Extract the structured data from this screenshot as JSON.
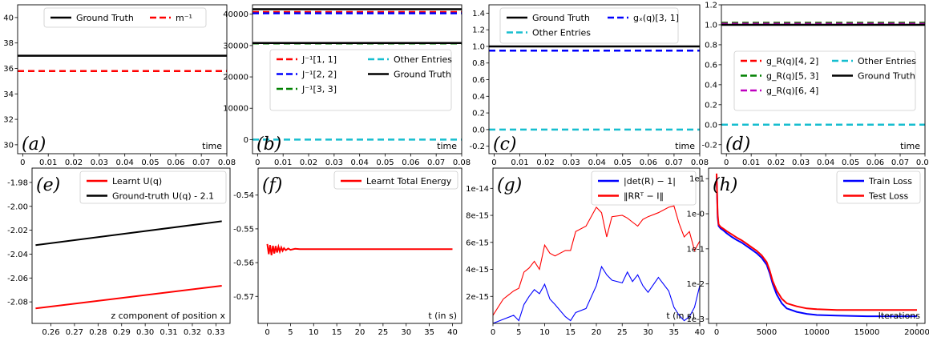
{
  "chart_data": [
    {
      "type": "line",
      "panel_label": "(a)",
      "xlabel": "time",
      "ylabel": "",
      "xlim": [
        -0.002,
        0.08
      ],
      "ylim": [
        29.3,
        41.0
      ],
      "xticks": [
        0,
        0.01,
        0.02,
        0.03,
        0.04,
        0.05,
        0.06,
        0.07,
        0.08
      ],
      "xtick_labels": [
        "0",
        "0.01",
        "0.02",
        "0.03",
        "0.04",
        "0.05",
        "0.06",
        "0.07",
        "0.08"
      ],
      "yticks": [
        30,
        32,
        34,
        36,
        38,
        40
      ],
      "ytick_labels": [
        "30",
        "32",
        "34",
        "36",
        "38",
        "40"
      ],
      "legend": {
        "placement": "top",
        "columns": 2
      },
      "series": [
        {
          "name": "Ground Truth",
          "color": "#000000",
          "dash": "solid",
          "x": [
            -0.002,
            0.08
          ],
          "y": [
            37.0,
            37.0
          ]
        },
        {
          "name": "m⁻¹",
          "color": "#ff0000",
          "dash": "dashed",
          "x": [
            -0.002,
            0.08
          ],
          "y": [
            35.8,
            35.8
          ]
        }
      ]
    },
    {
      "type": "line",
      "panel_label": "(b)",
      "xlabel": "time",
      "ylabel": "",
      "xlim": [
        -0.002,
        0.08
      ],
      "ylim": [
        -4500,
        43000
      ],
      "xticks": [
        0,
        0.01,
        0.02,
        0.03,
        0.04,
        0.05,
        0.06,
        0.07,
        0.08
      ],
      "xtick_labels": [
        "0",
        "0.01",
        "0.02",
        "0.03",
        "0.04",
        "0.05",
        "0.06",
        "0.07",
        "0.08"
      ],
      "yticks": [
        0,
        10000,
        20000,
        30000,
        40000
      ],
      "ytick_labels": [
        "0",
        "10000",
        "20000",
        "30000",
        "40000"
      ],
      "legend": {
        "placement": "center",
        "columns": 2
      },
      "series": [
        {
          "name": "J⁻¹[1, 1]",
          "color": "#ff0000",
          "dash": "dashed",
          "x": [
            -0.002,
            0.08
          ],
          "y": [
            40700,
            40700
          ]
        },
        {
          "name": "J⁻¹[2, 2]",
          "color": "#0000ff",
          "dash": "dashed",
          "x": [
            -0.002,
            0.08
          ],
          "y": [
            40300,
            40300
          ]
        },
        {
          "name": "J⁻¹[3, 3]",
          "color": "#008000",
          "dash": "dashed",
          "x": [
            -0.002,
            0.08
          ],
          "y": [
            30700,
            30700
          ]
        },
        {
          "name": "Other Entries",
          "color": "#17becf",
          "dash": "dashed",
          "x": [
            -0.002,
            0.08
          ],
          "y": [
            0,
            0
          ]
        },
        {
          "name": "Ground Truth",
          "color": "#000000",
          "dash": "solid",
          "x": [
            -0.002,
            0.08
          ],
          "y": [
            41600,
            41600
          ]
        },
        {
          "name": "",
          "color": "#000000",
          "dash": "solid",
          "x": [
            -0.002,
            0.08
          ],
          "y": [
            30800,
            30800
          ]
        }
      ]
    },
    {
      "type": "line",
      "panel_label": "(c)",
      "xlabel": "time",
      "ylabel": "",
      "xlim": [
        -0.002,
        0.08
      ],
      "ylim": [
        -0.29,
        1.5
      ],
      "xticks": [
        0,
        0.01,
        0.02,
        0.03,
        0.04,
        0.05,
        0.06,
        0.07,
        0.08
      ],
      "xtick_labels": [
        "0",
        "0.01",
        "0.02",
        "0.03",
        "0.04",
        "0.05",
        "0.06",
        "0.07",
        "0.08"
      ],
      "yticks": [
        -0.2,
        0,
        0.2,
        0.4,
        0.6,
        0.8,
        1.0,
        1.2,
        1.4
      ],
      "ytick_labels": [
        "-0.2",
        "0.0",
        "0.2",
        "0.4",
        "0.6",
        "0.8",
        "1.0",
        "1.2",
        "1.4"
      ],
      "legend": {
        "placement": "top",
        "columns": 2
      },
      "series": [
        {
          "name": "Ground Truth",
          "color": "#000000",
          "dash": "solid",
          "x": [
            -0.002,
            0.08
          ],
          "y": [
            1.0,
            1.0
          ]
        },
        {
          "name": "Other Entries",
          "color": "#17becf",
          "dash": "dashed",
          "x": [
            -0.002,
            0.08
          ],
          "y": [
            0.0,
            0.0
          ]
        },
        {
          "name": "gₓ(q)[3, 1]",
          "color": "#0000ff",
          "dash": "dashed",
          "x": [
            -0.002,
            0.08
          ],
          "y": [
            0.95,
            0.95
          ]
        }
      ]
    },
    {
      "type": "line",
      "panel_label": "(d)",
      "xlabel": "time",
      "ylabel": "",
      "xlim": [
        -0.002,
        0.08
      ],
      "ylim": [
        -0.29,
        1.2
      ],
      "xticks": [
        0,
        0.01,
        0.02,
        0.03,
        0.04,
        0.05,
        0.06,
        0.07,
        0.08
      ],
      "xtick_labels": [
        "0",
        "0.01",
        "0.02",
        "0.03",
        "0.04",
        "0.05",
        "0.06",
        "0.07",
        "0.08"
      ],
      "yticks": [
        -0.2,
        0,
        0.2,
        0.4,
        0.6,
        0.8,
        1.0,
        1.2
      ],
      "ytick_labels": [
        "-0.2",
        "0.0",
        "0.2",
        "0.4",
        "0.6",
        "0.8",
        "1.0",
        "1.2"
      ],
      "legend": {
        "placement": "center",
        "columns": 2
      },
      "series": [
        {
          "name": "g_R(q)[4, 2]",
          "color": "#ff0000",
          "dash": "dashed",
          "x": [
            -0.002,
            0.08
          ],
          "y": [
            1.02,
            1.02
          ]
        },
        {
          "name": "g_R(q)[5, 3]",
          "color": "#008000",
          "dash": "dashed",
          "x": [
            -0.002,
            0.08
          ],
          "y": [
            1.02,
            1.02
          ]
        },
        {
          "name": "g_R(q)[6, 4]",
          "color": "#bf00bf",
          "dash": "dashed",
          "x": [
            -0.002,
            0.08
          ],
          "y": [
            1.01,
            1.01
          ]
        },
        {
          "name": "Other Entries",
          "color": "#17becf",
          "dash": "dashed",
          "x": [
            -0.002,
            0.08
          ],
          "y": [
            0.0,
            0.0
          ]
        },
        {
          "name": "Ground Truth",
          "color": "#000000",
          "dash": "solid",
          "x": [
            -0.002,
            0.08
          ],
          "y": [
            1.0,
            1.0
          ]
        }
      ]
    },
    {
      "type": "line",
      "panel_label": "(e)",
      "xlabel": "z component of position x",
      "ylabel": "",
      "xlim": [
        0.252,
        0.336
      ],
      "ylim": [
        -2.098,
        -1.968
      ],
      "xticks": [
        0.26,
        0.27,
        0.28,
        0.29,
        0.3,
        0.31,
        0.32,
        0.33
      ],
      "xtick_labels": [
        "0.26",
        "0.27",
        "0.28",
        "0.29",
        "0.30",
        "0.31",
        "0.32",
        "0.33"
      ],
      "yticks": [
        -2.08,
        -2.06,
        -2.04,
        -2.02,
        -2.0,
        -1.98
      ],
      "ytick_labels": [
        "-2.08",
        "-2.06",
        "-2.04",
        "-2.02",
        "-2.00",
        "-1.98"
      ],
      "legend": {
        "placement": "top-right",
        "columns": 1
      },
      "series": [
        {
          "name": "Learnt U(q)",
          "color": "#ff0000",
          "dash": "solid",
          "x": [
            0.2535,
            0.3325
          ],
          "y": [
            -2.0855,
            -2.0665
          ]
        },
        {
          "name": "Ground-truth U(q) - 2.1",
          "color": "#000000",
          "dash": "solid",
          "x": [
            0.2535,
            0.3325
          ],
          "y": [
            -2.0325,
            -2.0125
          ]
        }
      ]
    },
    {
      "type": "line",
      "panel_label": "(f)",
      "xlabel": "t (in s)",
      "ylabel": "",
      "xlim": [
        -2,
        42
      ],
      "ylim": [
        -0.578,
        -0.532
      ],
      "xticks": [
        0,
        5,
        10,
        15,
        20,
        25,
        30,
        35,
        40
      ],
      "xtick_labels": [
        "0",
        "5",
        "10",
        "15",
        "20",
        "25",
        "30",
        "35",
        "40"
      ],
      "yticks": [
        -0.57,
        -0.56,
        -0.55,
        -0.54
      ],
      "ytick_labels": [
        "-0.57",
        "-0.56",
        "-0.55",
        "-0.54"
      ],
      "legend": {
        "placement": "top-right",
        "columns": 1
      },
      "series": [
        {
          "name": "Learnt Total Energy",
          "color": "#ff0000",
          "dash": "solid",
          "x": [
            0,
            0.3,
            0.6,
            0.9,
            1.2,
            1.5,
            1.8,
            2.1,
            2.4,
            2.7,
            3.0,
            3.3,
            3.6,
            4.0,
            4.5,
            5.0,
            6.0,
            7.0,
            10,
            20,
            30,
            40
          ],
          "y": [
            -0.5545,
            -0.5575,
            -0.5548,
            -0.5578,
            -0.555,
            -0.5573,
            -0.5551,
            -0.557,
            -0.5553,
            -0.5567,
            -0.5555,
            -0.5565,
            -0.5557,
            -0.5563,
            -0.5558,
            -0.5562,
            -0.5559,
            -0.556,
            -0.556,
            -0.556,
            -0.556,
            -0.556
          ]
        }
      ]
    },
    {
      "type": "line",
      "panel_label": "(g)",
      "xlabel": "t (in s)",
      "ylabel": "",
      "xlim": [
        0,
        40
      ],
      "ylim": [
        0,
        1.15e-14
      ],
      "xticks": [
        0,
        5,
        10,
        15,
        20,
        25,
        30,
        35,
        40
      ],
      "xtick_labels": [
        "0",
        "5",
        "10",
        "15",
        "20",
        "25",
        "30",
        "35",
        "40"
      ],
      "yticks": [
        2e-15,
        4e-15,
        6e-15,
        8e-15,
        1e-14
      ],
      "ytick_labels": [
        "2e-15",
        "4e-15",
        "6e-15",
        "8e-15",
        "1e-14"
      ],
      "legend": {
        "placement": "top-right",
        "columns": 1
      },
      "series": [
        {
          "name": "|det(R) − 1|",
          "color": "#0000ff",
          "dash": "solid",
          "x": [
            0,
            2,
            4,
            5,
            6,
            7,
            8,
            9,
            10,
            11,
            12,
            14,
            15,
            16,
            18,
            20,
            21,
            22,
            23,
            25,
            26,
            27,
            28,
            29,
            30,
            32,
            34,
            35,
            36,
            37,
            38,
            39,
            40
          ],
          "y": [
            0,
            3e-16,
            6e-16,
            2e-16,
            1.4e-15,
            2e-15,
            2.5e-15,
            2.2e-15,
            2.9e-15,
            1.8e-15,
            1.4e-15,
            5e-16,
            2e-16,
            8e-16,
            1.1e-15,
            2.8e-15,
            4.2e-15,
            3.6e-15,
            3.2e-15,
            3e-15,
            3.8e-15,
            3.1e-15,
            3.6e-15,
            2.8e-15,
            2.3e-15,
            3.4e-15,
            2.4e-15,
            1.2e-15,
            6e-16,
            2e-16,
            5e-16,
            1.2e-15,
            2.8e-15
          ]
        },
        {
          "name": "‖RRᵀ − I‖",
          "color": "#ff0000",
          "dash": "solid",
          "x": [
            0,
            2,
            4,
            5,
            6,
            7,
            8,
            9,
            10,
            11,
            12,
            14,
            15,
            16,
            18,
            20,
            21,
            22,
            23,
            25,
            26,
            27,
            28,
            29,
            30,
            32,
            34,
            35,
            36,
            37,
            38,
            39,
            40
          ],
          "y": [
            6e-16,
            1.8e-15,
            2.4e-15,
            2.6e-15,
            3.8e-15,
            4.1e-15,
            4.6e-15,
            4e-15,
            5.8e-15,
            5.2e-15,
            5e-15,
            5.4e-15,
            5.4e-15,
            6.8e-15,
            7.2e-15,
            8.6e-15,
            8.2e-15,
            6.4e-15,
            7.9e-15,
            8e-15,
            7.8e-15,
            7.5e-15,
            7.2e-15,
            7.7e-15,
            7.9e-15,
            8.2e-15,
            8.6e-15,
            8.7e-15,
            7.4e-15,
            6.4e-15,
            6.8e-15,
            5.4e-15,
            6.1e-15
          ]
        }
      ]
    },
    {
      "type": "line",
      "panel_label": "(h)",
      "yscale": "log",
      "xlabel": "Iterations",
      "ylabel": "",
      "xlim": [
        -800,
        20800
      ],
      "ylim": [
        0.00075,
        20
      ],
      "xticks": [
        0,
        5000,
        10000,
        15000,
        20000
      ],
      "xtick_labels": [
        "0",
        "5000",
        "10000",
        "15000",
        "20000"
      ],
      "yticks": [
        0.001,
        0.01,
        0.1,
        1,
        10
      ],
      "ytick_labels": [
        "1e-3",
        "1e-2",
        "1e-1",
        "1e-0",
        "1e1"
      ],
      "legend": {
        "placement": "top-right",
        "columns": 1
      },
      "series": [
        {
          "name": "Train Loss",
          "color": "#0000ff",
          "dash": "solid",
          "x": [
            0,
            100,
            200,
            400,
            700,
            1000,
            1500,
            2000,
            2500,
            3000,
            3500,
            4000,
            4500,
            5000,
            5300,
            5600,
            6000,
            6500,
            7000,
            8000,
            9000,
            10000,
            12000,
            15000,
            18000,
            20000
          ],
          "y": [
            12,
            0.8,
            0.45,
            0.38,
            0.33,
            0.28,
            0.22,
            0.18,
            0.15,
            0.12,
            0.095,
            0.075,
            0.055,
            0.035,
            0.02,
            0.01,
            0.005,
            0.0028,
            0.002,
            0.0016,
            0.0014,
            0.0013,
            0.00125,
            0.0012,
            0.0012,
            0.0012
          ]
        },
        {
          "name": "Test Loss",
          "color": "#ff0000",
          "dash": "solid",
          "x": [
            0,
            100,
            200,
            400,
            700,
            1000,
            1500,
            2000,
            2500,
            3000,
            3500,
            4000,
            4500,
            5000,
            5300,
            5600,
            6000,
            6500,
            7000,
            8000,
            9000,
            10000,
            12000,
            15000,
            18000,
            20000
          ],
          "y": [
            14,
            1.0,
            0.5,
            0.42,
            0.37,
            0.32,
            0.26,
            0.21,
            0.175,
            0.14,
            0.11,
            0.088,
            0.065,
            0.042,
            0.024,
            0.012,
            0.0065,
            0.0038,
            0.0028,
            0.0023,
            0.002,
            0.0019,
            0.0018,
            0.0018,
            0.0018,
            0.0018
          ]
        }
      ]
    }
  ]
}
